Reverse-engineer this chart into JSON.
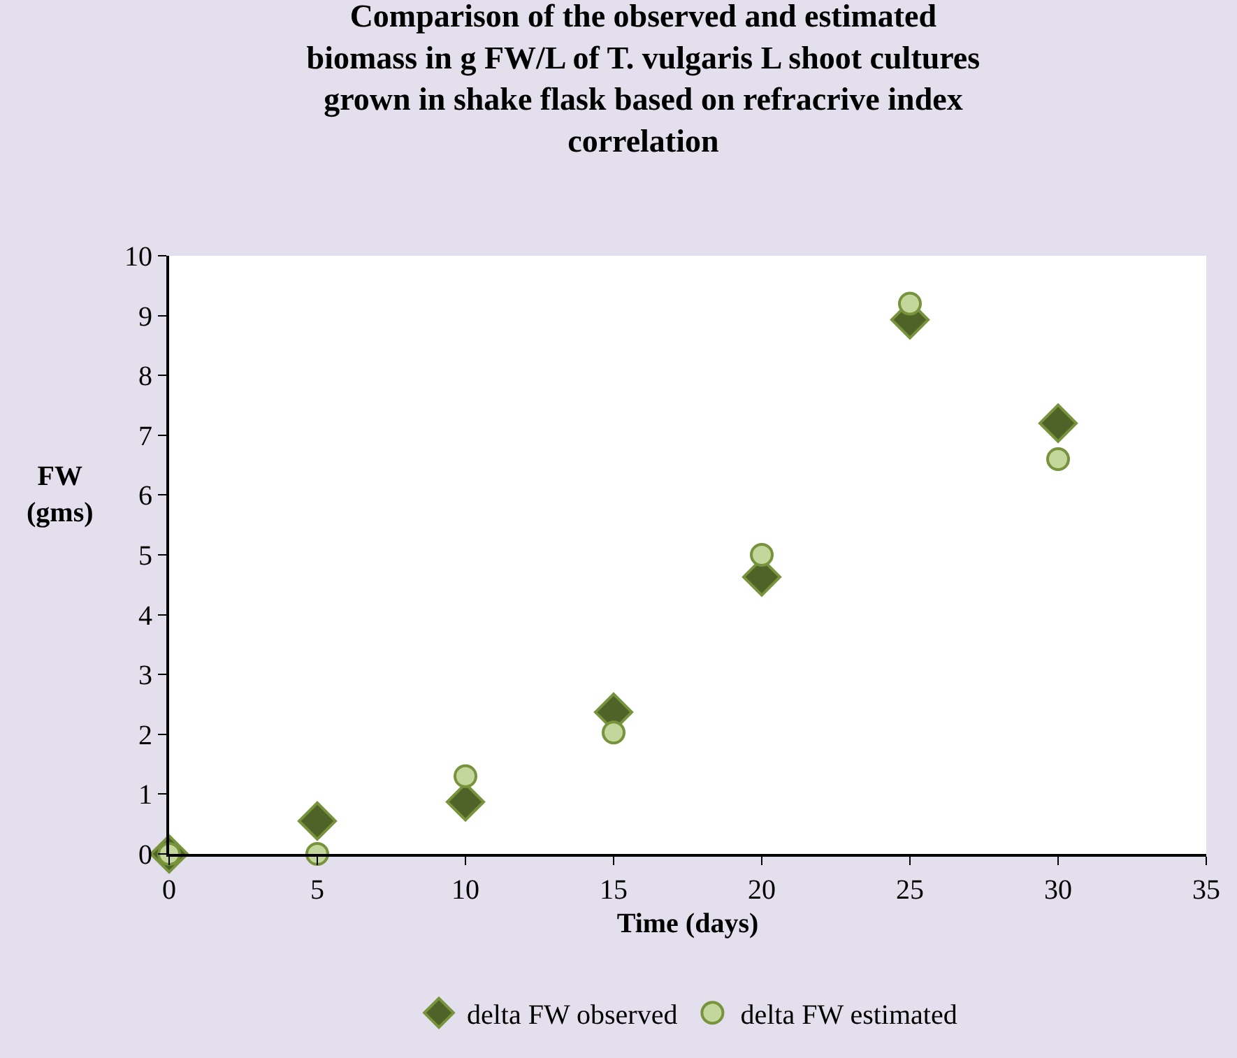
{
  "chart_data": {
    "type": "scatter",
    "title": "Comparison of the observed and estimated\nbiomass in g FW/L of T. vulgaris L shoot cultures\ngrown in shake flask based on refracrive index\ncorrelation",
    "xlabel": "Time (days)",
    "ylabel": "FW\n(gms)",
    "x": [
      0,
      5,
      10,
      15,
      20,
      25,
      30
    ],
    "series": [
      {
        "name": "delta FW observed",
        "color": "#4f6228",
        "marker": "diamond",
        "values": [
          0,
          0.55,
          0.87,
          2.37,
          4.63,
          8.93,
          7.2
        ]
      },
      {
        "name": "delta FW estimated",
        "color": "#c3d69b",
        "marker": "circle",
        "values": [
          0,
          0,
          1.3,
          2.03,
          5.0,
          9.2,
          6.6
        ]
      }
    ],
    "xlim": [
      0,
      35
    ],
    "xticks": [
      0,
      5,
      10,
      15,
      20,
      25,
      30,
      35
    ],
    "ylim": [
      0,
      10
    ],
    "yticks": [
      0,
      1,
      2,
      3,
      4,
      5,
      6,
      7,
      8,
      9,
      10
    ],
    "legend": "bottom"
  }
}
